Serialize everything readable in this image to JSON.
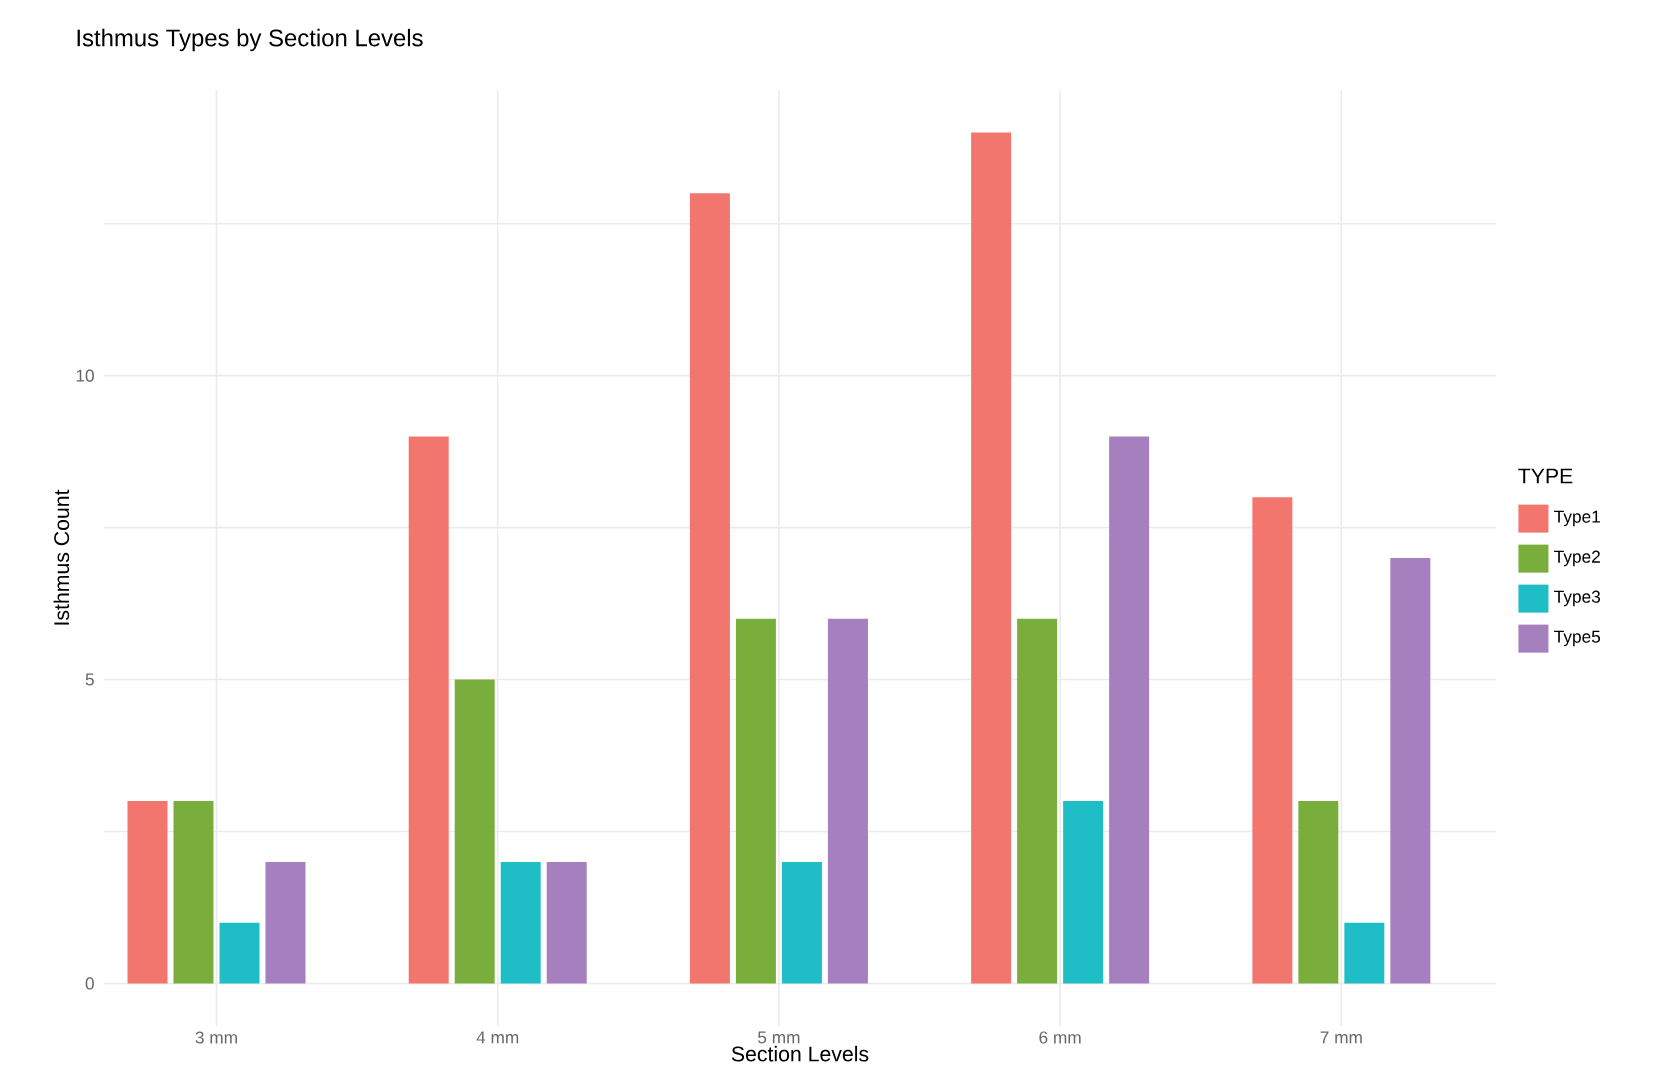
{
  "chart_data": {
    "type": "bar",
    "title": "Isthmus Types by Section Levels",
    "xlabel": "Section Levels",
    "ylabel": "Isthmus Count",
    "legend_title": "TYPE",
    "categories": [
      "3 mm",
      "4 mm",
      "5 mm",
      "6 mm",
      "7 mm"
    ],
    "series": [
      {
        "name": "Type1",
        "color": "#f3766e",
        "values": [
          3,
          9,
          13,
          14,
          8
        ]
      },
      {
        "name": "Type2",
        "color": "#7aae3c",
        "values": [
          3,
          5,
          6,
          6,
          3
        ]
      },
      {
        "name": "Type3",
        "color": "#1fbec6",
        "values": [
          1,
          2,
          2,
          3,
          1
        ]
      },
      {
        "name": "Type5",
        "color": "#a67fbf",
        "values": [
          2,
          2,
          6,
          9,
          7
        ]
      }
    ],
    "ylim": [
      -0.7,
      14.7
    ],
    "yticks": [
      0,
      {
        "value": 2.5,
        "label": null
      },
      5,
      {
        "value": 7.5,
        "label": null
      },
      10,
      {
        "value": 12.5,
        "label": null
      }
    ],
    "grid": true,
    "legend": "right"
  }
}
